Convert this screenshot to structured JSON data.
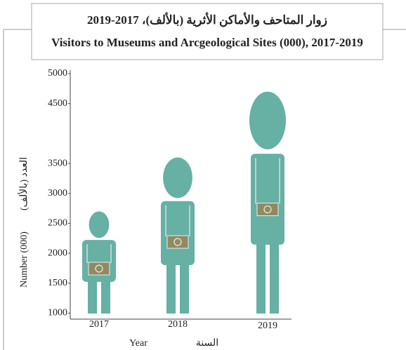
{
  "chart_data": {
    "type": "pictograph",
    "title": "زوار المتاحف والأماكن الأثرية (بالألف)، 2017-2019",
    "subtitle": "Visitors to Museums and Arcgeological Sites (000), 2017-2019",
    "xlabel": "Year",
    "xlabel_ar": "السنة",
    "ylabel": "Number (000)",
    "ylabel_ar": "العدد (بالألف)",
    "categories": [
      "2017",
      "2018",
      "2019"
    ],
    "values": [
      2700,
      3600,
      4700
    ],
    "color": "#66b0a4",
    "camera_color": "#8f8a62",
    "ylim": [
      900,
      5000
    ],
    "yticks": [
      1000,
      1500,
      2000,
      2500,
      3000,
      3500,
      4500,
      5000
    ]
  }
}
